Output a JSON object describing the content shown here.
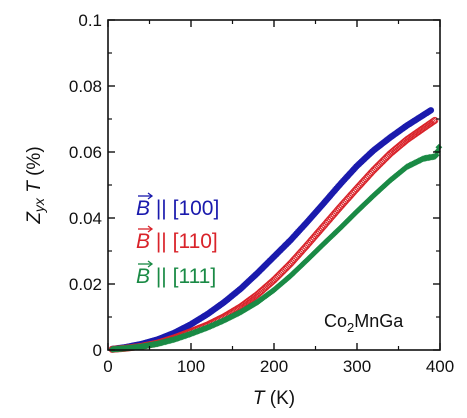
{
  "chart_data": {
    "type": "scatter",
    "xlabel": {
      "symbol": "T",
      "unit": "(K)"
    },
    "ylabel": {
      "symbol": "Z",
      "subscript": "yx",
      "symbol2": "T",
      "unit": "(%)"
    },
    "xlim": [
      0,
      400
    ],
    "ylim": [
      0,
      0.1
    ],
    "x_ticks": [
      "0",
      "100",
      "200",
      "300",
      "400"
    ],
    "y_ticks": [
      "0",
      "0.02",
      "0.04",
      "0.06",
      "0.08",
      "0.1"
    ],
    "annotation": {
      "base": "Co",
      "sub": "2",
      "rest": "MnGa"
    },
    "grid": false,
    "legend_placement": "left",
    "series": [
      {
        "name": "B || [100]",
        "legend": {
          "vec": "B",
          "sep": " || ",
          "dir": "[100]"
        },
        "color": "#1a1aad",
        "marker": "filled-circle",
        "x": [
          5,
          20,
          40,
          60,
          80,
          100,
          120,
          140,
          160,
          180,
          200,
          220,
          240,
          260,
          280,
          300,
          320,
          340,
          360,
          380,
          390
        ],
        "y": [
          0.0003,
          0.0008,
          0.0018,
          0.0032,
          0.0052,
          0.0078,
          0.0109,
          0.0145,
          0.0186,
          0.0233,
          0.0283,
          0.0333,
          0.0388,
          0.0445,
          0.0503,
          0.0558,
          0.0605,
          0.0644,
          0.068,
          0.0712,
          0.0728
        ]
      },
      {
        "name": "B || [110]",
        "legend": {
          "vec": "B",
          "sep": " || ",
          "dir": "[110]"
        },
        "color": "#d9232a",
        "marker": "open-circle",
        "x": [
          5,
          20,
          40,
          60,
          80,
          100,
          120,
          140,
          160,
          180,
          200,
          220,
          240,
          260,
          280,
          300,
          320,
          340,
          360,
          380,
          395
        ],
        "y": [
          0.0002,
          0.0005,
          0.0011,
          0.0021,
          0.0037,
          0.0056,
          0.0076,
          0.0101,
          0.0131,
          0.0168,
          0.0212,
          0.0262,
          0.0318,
          0.0376,
          0.0434,
          0.049,
          0.0545,
          0.0595,
          0.0637,
          0.0672,
          0.0698
        ]
      },
      {
        "name": "B || [111]",
        "legend": {
          "vec": "B",
          "sep": " || ",
          "dir": "[111]"
        },
        "color": "#1a8a45",
        "marker": "filled-diamond",
        "x": [
          5,
          20,
          40,
          60,
          80,
          100,
          120,
          140,
          160,
          180,
          200,
          220,
          240,
          260,
          280,
          300,
          320,
          340,
          360,
          380,
          395,
          400
        ],
        "y": [
          0.0002,
          0.0005,
          0.001,
          0.0019,
          0.0032,
          0.0049,
          0.0068,
          0.009,
          0.0115,
          0.0145,
          0.0182,
          0.0225,
          0.0273,
          0.0322,
          0.037,
          0.042,
          0.0468,
          0.0514,
          0.0555,
          0.058,
          0.0587,
          0.0625
        ]
      }
    ]
  }
}
